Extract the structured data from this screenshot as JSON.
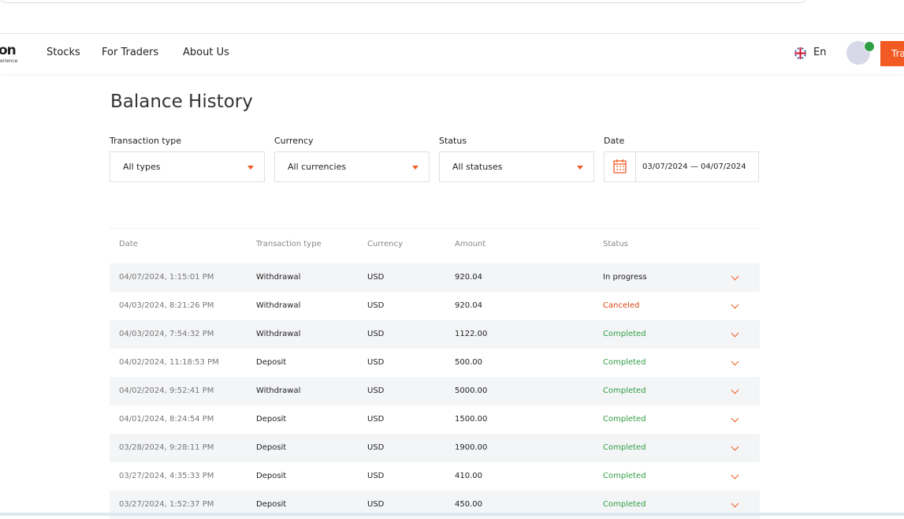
{
  "nav": {
    "logo": "on",
    "logo_sub": "erience",
    "links": [
      "Stocks",
      "For Traders",
      "About Us"
    ],
    "language": "En",
    "button": "Tra"
  },
  "page": {
    "title": "Balance History"
  },
  "filters": [
    {
      "label": "Transaction type",
      "value": "All types"
    },
    {
      "label": "Currency",
      "value": "All currencies"
    },
    {
      "label": "Status",
      "value": "All statuses"
    },
    {
      "label": "Date",
      "value": "03/07/2024 — 04/07/2024"
    }
  ],
  "table": {
    "headers": [
      "Date",
      "Transaction type",
      "Currency",
      "Amount",
      "Status"
    ],
    "rows": [
      [
        "04/07/2024, 1:15:01 PM",
        "Withdrawal",
        "USD",
        "920.04",
        "In progress"
      ],
      [
        "04/03/2024, 8:21:26 PM",
        "Withdrawal",
        "USD",
        "920.04",
        "Canceled"
      ],
      [
        "04/03/2024, 7:54:32 PM",
        "Withdrawal",
        "USD",
        "1122.00",
        "Completed"
      ],
      [
        "04/02/2024, 11:18:53 PM",
        "Deposit",
        "USD",
        "500.00",
        "Completed"
      ],
      [
        "04/02/2024, 9:52:41 PM",
        "Withdrawal",
        "USD",
        "5000.00",
        "Completed"
      ],
      [
        "04/01/2024, 8:24:54 PM",
        "Deposit",
        "USD",
        "1500.00",
        "Completed"
      ],
      [
        "03/28/2024, 9:28:11 PM",
        "Deposit",
        "USD",
        "1900.00",
        "Completed"
      ],
      [
        "03/27/2024, 4:35:33 PM",
        "Deposit",
        "USD",
        "410.00",
        "Completed"
      ],
      [
        "03/27/2024, 1:52:37 PM",
        "Deposit",
        "USD",
        "450.00",
        "Completed"
      ]
    ],
    "status_colors": [
      "#222222",
      "#d9480f",
      "#2f9e44",
      "#2f9e44",
      "#2f9e44",
      "#2f9e44",
      "#2f9e44",
      "#2f9e44",
      "#2f9e44"
    ]
  }
}
